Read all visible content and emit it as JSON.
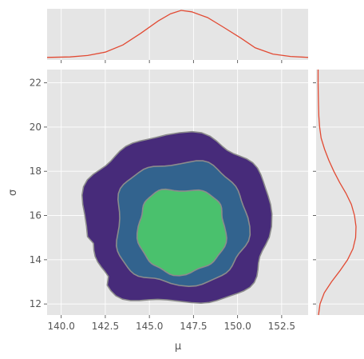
{
  "chart_data": {
    "type": "joint-kde",
    "xlabel": "μ",
    "ylabel": "σ",
    "xlim": [
      139.2,
      154.0
    ],
    "ylim": [
      11.5,
      22.6
    ],
    "xticks": [
      140.0,
      142.5,
      145.0,
      147.5,
      150.0,
      152.5
    ],
    "xtick_labels": [
      "140.0",
      "142.5",
      "145.0",
      "147.5",
      "150.0",
      "152.5"
    ],
    "yticks": [
      12,
      14,
      16,
      18,
      20,
      22
    ],
    "ytick_labels": [
      "12",
      "14",
      "16",
      "18",
      "20",
      "22"
    ],
    "grid": true,
    "contour_center": [
      146.7,
      15.5
    ],
    "contours": [
      {
        "level": "outer",
        "fill": "#472b7a",
        "x_range": [
          141.3,
          151.8
        ],
        "y_range": [
          12.0,
          19.6
        ]
      },
      {
        "level": "middle",
        "fill": "#32638e",
        "x_range": [
          143.1,
          150.5
        ],
        "y_range": [
          12.9,
          18.4
        ]
      },
      {
        "level": "inner",
        "fill": "#4ac16d",
        "x_range": [
          144.4,
          149.3
        ],
        "y_range": [
          13.4,
          17.2
        ]
      }
    ],
    "contour_edge_color": "#8c8c8c",
    "marginal_x": {
      "x": [
        139.2,
        140.5,
        141.5,
        142.5,
        143.5,
        144.5,
        145.5,
        146.2,
        146.8,
        147.4,
        148.3,
        149.2,
        150.2,
        151.0,
        152.0,
        153.0,
        154.0
      ],
      "density": [
        0.02,
        0.03,
        0.06,
        0.13,
        0.28,
        0.52,
        0.78,
        0.93,
        1.0,
        0.97,
        0.85,
        0.65,
        0.42,
        0.22,
        0.09,
        0.04,
        0.02
      ]
    },
    "marginal_y": {
      "y": [
        11.5,
        12.0,
        12.5,
        13.0,
        13.5,
        14.0,
        14.5,
        15.0,
        15.5,
        16.0,
        16.5,
        17.0,
        17.5,
        18.0,
        18.5,
        19.0,
        19.5,
        20.0,
        20.5,
        21.0,
        21.5,
        22.0,
        22.6
      ],
      "density": [
        0.02,
        0.06,
        0.17,
        0.36,
        0.58,
        0.78,
        0.92,
        0.99,
        1.0,
        0.96,
        0.88,
        0.74,
        0.57,
        0.42,
        0.29,
        0.18,
        0.09,
        0.05,
        0.03,
        0.02,
        0.015,
        0.01,
        0.01
      ]
    },
    "colors": {
      "panel_bg": "#e5e5e5",
      "grid": "#ffffff",
      "marginal_line": "#e24a33"
    }
  }
}
